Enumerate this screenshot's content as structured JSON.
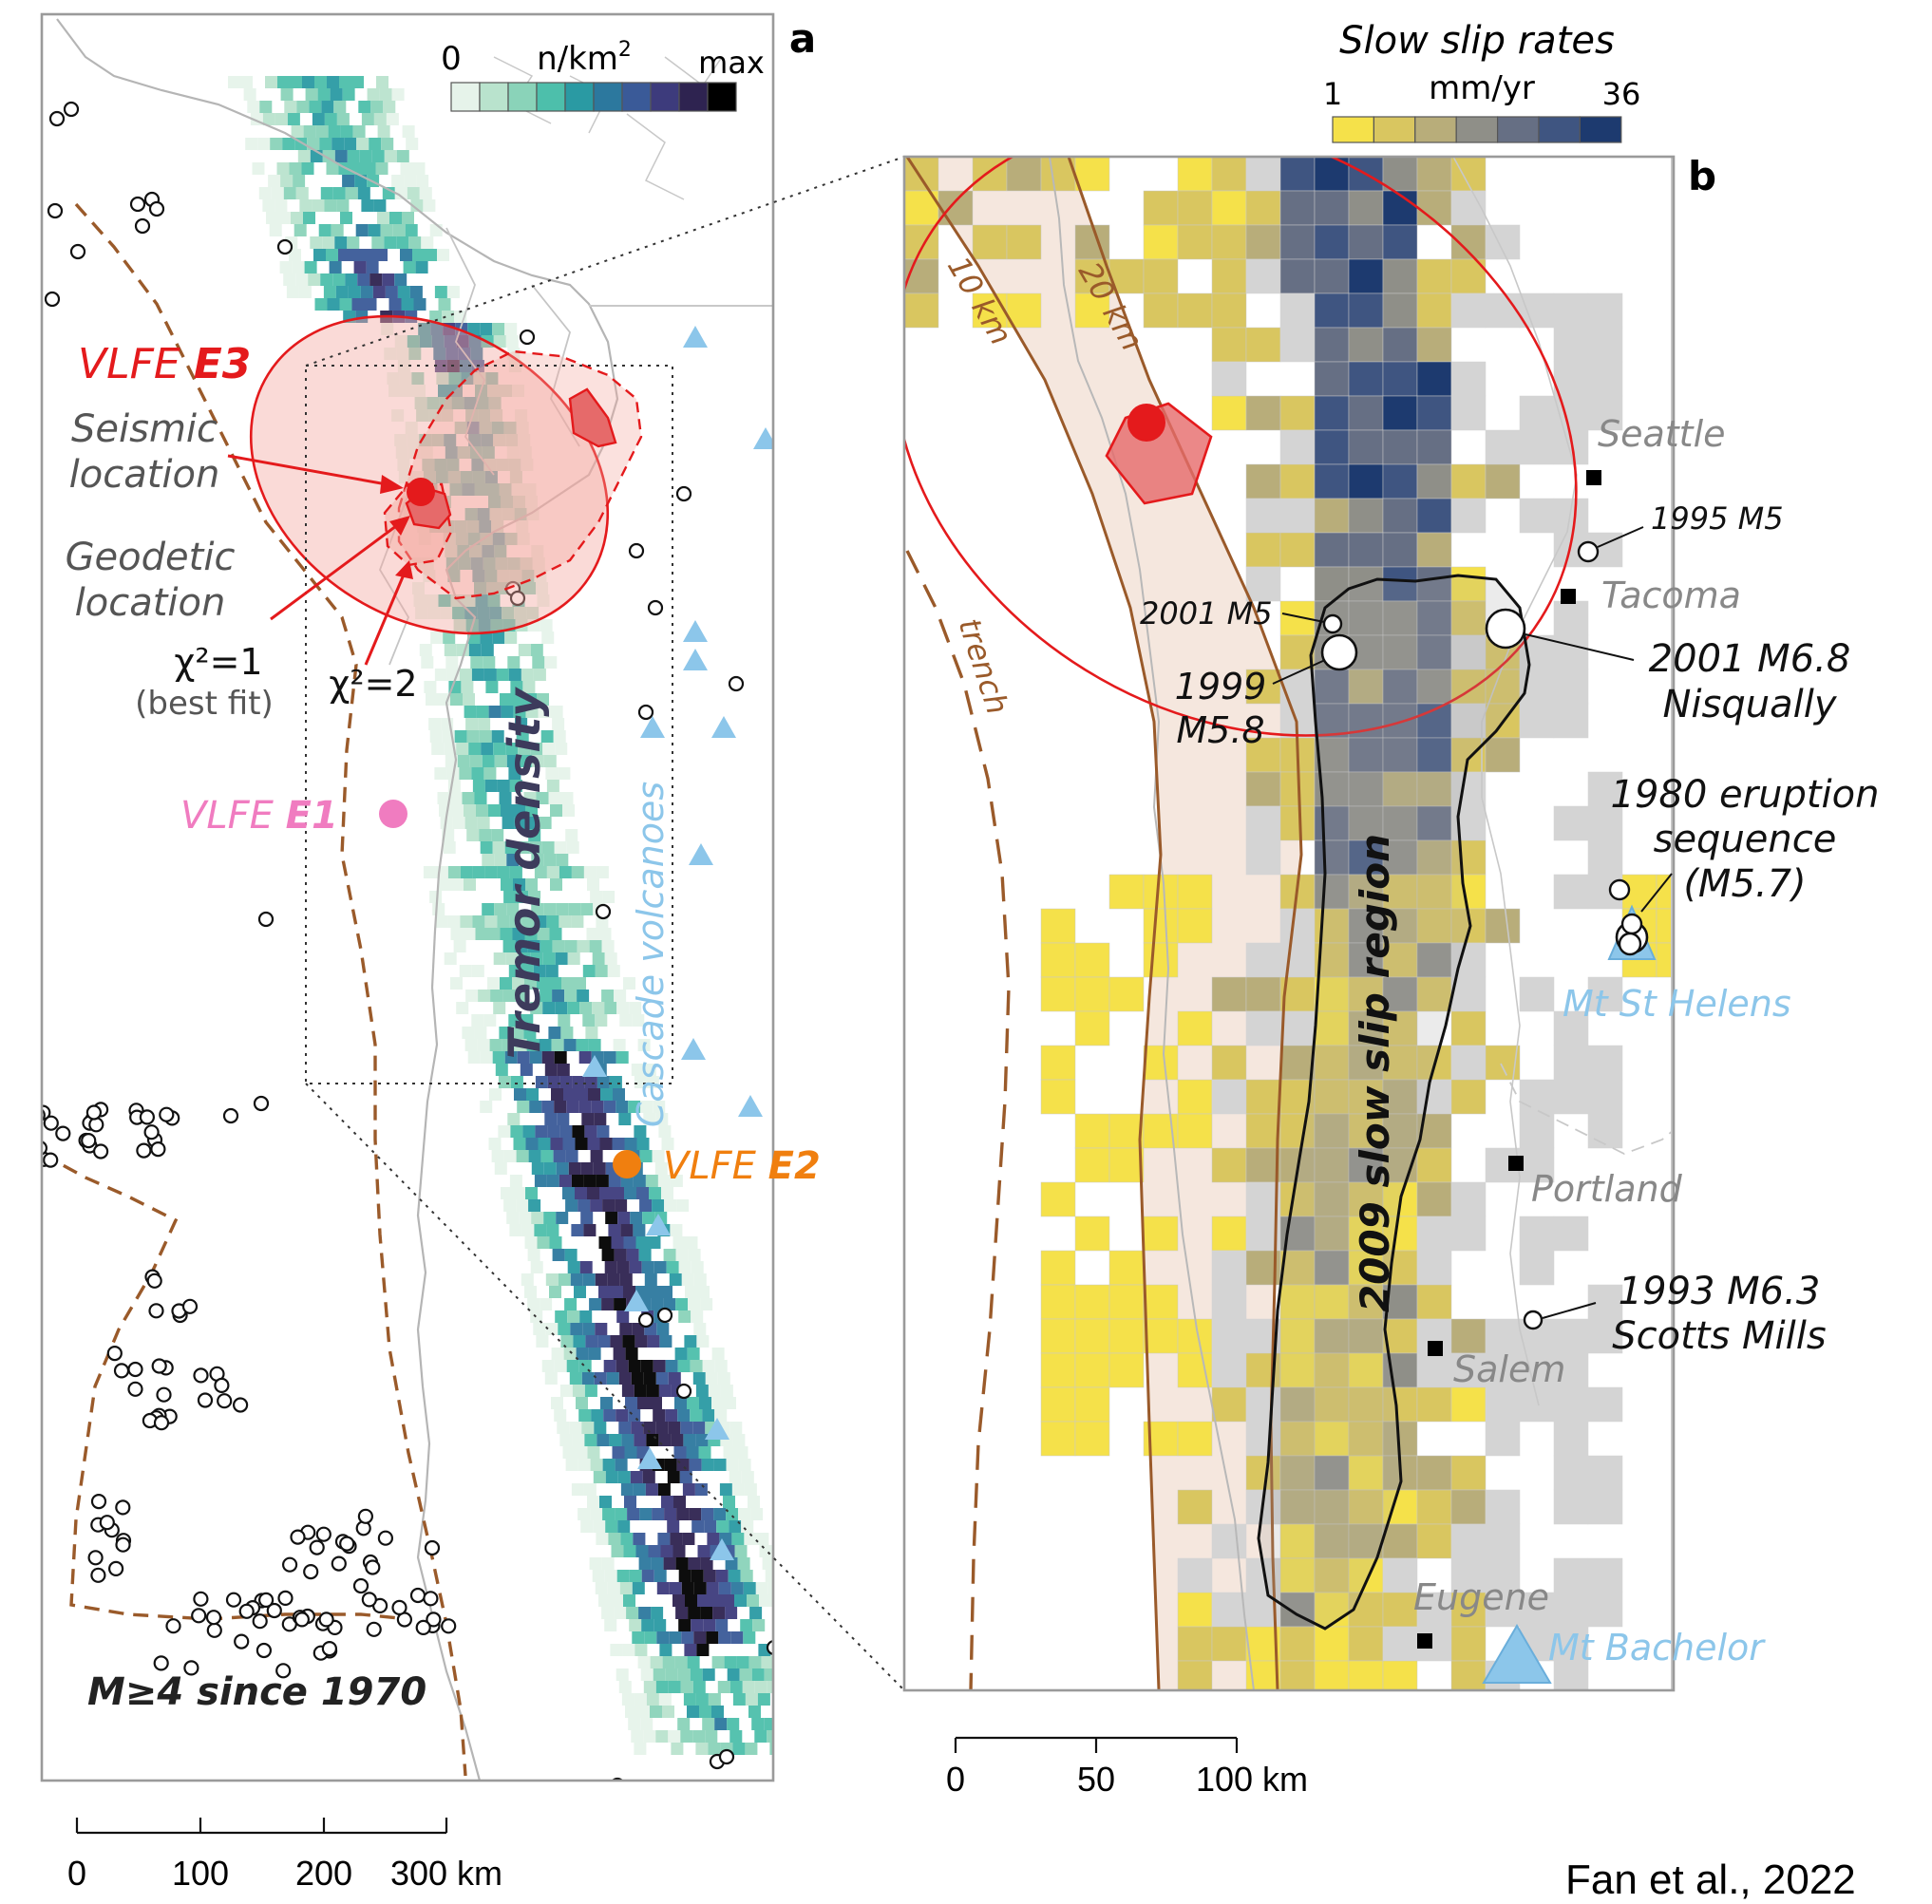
{
  "panel_a": {
    "letter": "a",
    "legend": {
      "min": "0",
      "unit": "n/km",
      "unit_sup": "2",
      "max": "max"
    },
    "vlfe_e3_prefix": "VLFE ",
    "vlfe_e3_id": "E3",
    "seismic_label_1": "Seismic",
    "seismic_label_2": "location",
    "geodetic_label_1": "Geodetic",
    "geodetic_label_2": "location",
    "chi1": "χ²=1",
    "chi1_sub": "(best fit)",
    "chi2": "χ²=2",
    "vlfe_e1_prefix": "VLFE ",
    "vlfe_e1_id": "E1",
    "vlfe_e2_prefix": "VLFE ",
    "vlfe_e2_id": "E2",
    "tremor_label": "Tremor density",
    "volcano_label": "Cascade volcanoes",
    "quake_label": "M≥4 since 1970",
    "scale": {
      "t0": "0",
      "t1": "100",
      "t2": "200",
      "t3": "300 km"
    }
  },
  "panel_b": {
    "letter": "b",
    "legend": {
      "title": "Slow slip rates",
      "min": "1",
      "unit": "mm/yr",
      "max": "36"
    },
    "contour_10": "10 km",
    "contour_20": "20 km",
    "trench": "trench",
    "slow_slip_region": "2009 slow slip region",
    "cities": {
      "seattle": "Seattle",
      "tacoma": "Tacoma",
      "portland": "Portland",
      "salem": "Salem",
      "eugene": "Eugene"
    },
    "quakes": {
      "q1995": "1995 M5",
      "q2001m5": "2001 M5",
      "q1999_1": "1999",
      "q1999_2": "M5.8",
      "q2001_1": "2001 M6.8",
      "q2001_2": "Nisqually",
      "q1980_1": "1980 eruption",
      "q1980_2": "sequence",
      "q1980_3": "(M5.7)",
      "q1993_1": "1993 M6.3",
      "q1993_2": "Scotts Mills"
    },
    "volcanoes": {
      "st_helens": "Mt St Helens",
      "bachelor": "Mt Bachelor"
    },
    "scale": {
      "t0": "0",
      "t1": "50",
      "t2": "100 km"
    }
  },
  "citation": "Fan et al., 2022",
  "colors": {
    "tremor_ramp": [
      "#e6f3ea",
      "#b9e3cd",
      "#8ad3b9",
      "#4dbfab",
      "#2a9aa3",
      "#2c789e",
      "#3a5a98",
      "#3d3b7c",
      "#2e2350",
      "#000000"
    ],
    "slip_ramp": [
      "#f5e14a",
      "#d9c660",
      "#b8ad7a",
      "#8f8f88",
      "#666f84",
      "#3f5581",
      "#1d3a6f"
    ],
    "vlfe_e3": "#e41a1c",
    "vlfe_e1": "#f07cc0",
    "vlfe_e2": "#f07f0f",
    "volcano": "#8cc6ea",
    "trench": "#9a5a2a"
  }
}
